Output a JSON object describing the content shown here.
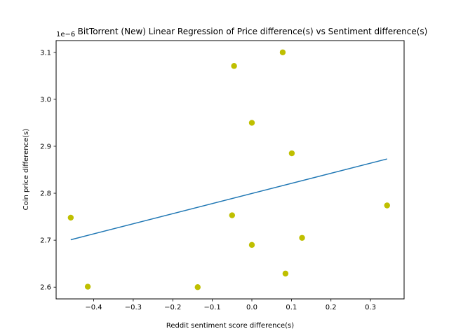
{
  "chart_data": {
    "type": "scatter",
    "title": "BitTorrent (New) Linear Regression of Price difference(s) vs Sentiment difference(s)",
    "xlabel": "Reddit sentiment score difference(s)",
    "ylabel": "Coin price difference(s)",
    "y_offset_label": "1e−6",
    "xlim": [
      -0.495,
      0.385
    ],
    "ylim": [
      2.575,
      3.125
    ],
    "x_ticks": [
      -0.4,
      -0.3,
      -0.2,
      -0.1,
      0.0,
      0.1,
      0.2,
      0.3
    ],
    "x_tick_labels": [
      "−0.4",
      "−0.3",
      "−0.2",
      "−0.1",
      "0.0",
      "0.1",
      "0.2",
      "0.3"
    ],
    "y_ticks": [
      2.6,
      2.7,
      2.8,
      2.9,
      3.0,
      3.1
    ],
    "y_tick_labels": [
      "2.6",
      "2.7",
      "2.8",
      "2.9",
      "3.0",
      "3.1"
    ],
    "grid": false,
    "points": [
      {
        "x": 0.078,
        "y": 3.1
      },
      {
        "x": -0.045,
        "y": 3.071
      },
      {
        "x": 0.0,
        "y": 2.95
      },
      {
        "x": 0.101,
        "y": 2.885
      },
      {
        "x": 0.342,
        "y": 2.774
      },
      {
        "x": -0.458,
        "y": 2.748
      },
      {
        "x": -0.05,
        "y": 2.753
      },
      {
        "x": 0.127,
        "y": 2.705
      },
      {
        "x": 0.0,
        "y": 2.69
      },
      {
        "x": 0.085,
        "y": 2.629
      },
      {
        "x": -0.415,
        "y": 2.601
      },
      {
        "x": -0.137,
        "y": 2.6
      }
    ],
    "regression_line": {
      "x": [
        -0.458,
        0.342
      ],
      "y": [
        2.701,
        2.873
      ]
    },
    "colors": {
      "points": "#bfbf00",
      "line": "#1f77b4"
    }
  }
}
